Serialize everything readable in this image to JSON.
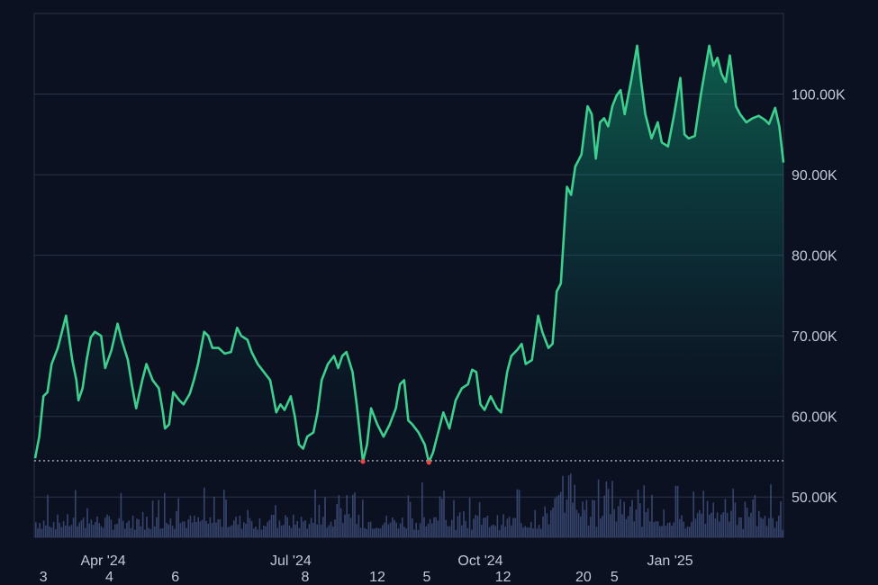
{
  "chart_data": {
    "type": "area",
    "title": "",
    "xlabel": "",
    "ylabel": "",
    "ylim": [
      45000,
      110000
    ],
    "y_ticks": [
      50000,
      60000,
      70000,
      80000,
      90000,
      100000
    ],
    "y_tick_labels": [
      "50.00K",
      "60.00K",
      "70.00K",
      "80.00K",
      "90.00K",
      "100.00K"
    ],
    "x_tick_labels": [
      {
        "date": "2024-04-01",
        "label": "Apr '24"
      },
      {
        "date": "2024-07-01",
        "label": "Jul '24"
      },
      {
        "date": "2024-10-01",
        "label": "Oct '24"
      },
      {
        "date": "2025-01-01",
        "label": "Jan '25"
      }
    ],
    "bottom_day_labels": [
      {
        "date": "2024-03-03",
        "label": "3"
      },
      {
        "date": "2024-04-04",
        "label": "4"
      },
      {
        "date": "2024-05-06",
        "label": "6"
      },
      {
        "date": "2024-07-08",
        "label": "8"
      },
      {
        "date": "2024-08-12",
        "label": "12"
      },
      {
        "date": "2024-09-05",
        "label": "5"
      },
      {
        "date": "2024-10-12",
        "label": "12"
      },
      {
        "date": "2024-11-20",
        "label": "20"
      },
      {
        "date": "2024-12-05",
        "label": "5"
      }
    ],
    "baseline": 54500,
    "low_markers": [
      {
        "date": "2024-08-05",
        "value": 54400
      },
      {
        "date": "2024-09-06",
        "value": 54300
      }
    ],
    "grid": true,
    "colors": {
      "line": "#3ecf8e",
      "area": "#10b981",
      "volume": "#3b4a75",
      "low_marker": "#ef4444",
      "grid": "#2a3447",
      "baseline": "#cbd5e1"
    },
    "series": [
      {
        "points": [
          [
            "2024-02-28",
            54800
          ],
          [
            "2024-03-01",
            57500
          ],
          [
            "2024-03-03",
            62500
          ],
          [
            "2024-03-05",
            63000
          ],
          [
            "2024-03-07",
            66500
          ],
          [
            "2024-03-10",
            68500
          ],
          [
            "2024-03-12",
            70500
          ],
          [
            "2024-03-14",
            72500
          ],
          [
            "2024-03-17",
            67000
          ],
          [
            "2024-03-19",
            64500
          ],
          [
            "2024-03-20",
            62000
          ],
          [
            "2024-03-22",
            63500
          ],
          [
            "2024-03-24",
            67000
          ],
          [
            "2024-03-26",
            69800
          ],
          [
            "2024-03-28",
            70500
          ],
          [
            "2024-03-31",
            70000
          ],
          [
            "2024-04-02",
            66000
          ],
          [
            "2024-04-05",
            68200
          ],
          [
            "2024-04-08",
            71500
          ],
          [
            "2024-04-10",
            69500
          ],
          [
            "2024-04-13",
            67000
          ],
          [
            "2024-04-15",
            63800
          ],
          [
            "2024-04-17",
            61000
          ],
          [
            "2024-04-20",
            64500
          ],
          [
            "2024-04-22",
            66500
          ],
          [
            "2024-04-25",
            64500
          ],
          [
            "2024-04-28",
            63500
          ],
          [
            "2024-04-30",
            60500
          ],
          [
            "2024-05-01",
            58500
          ],
          [
            "2024-05-03",
            59000
          ],
          [
            "2024-05-05",
            63000
          ],
          [
            "2024-05-08",
            62000
          ],
          [
            "2024-05-10",
            61500
          ],
          [
            "2024-05-13",
            62800
          ],
          [
            "2024-05-15",
            64500
          ],
          [
            "2024-05-17",
            66500
          ],
          [
            "2024-05-20",
            70500
          ],
          [
            "2024-05-22",
            70000
          ],
          [
            "2024-05-24",
            68500
          ],
          [
            "2024-05-27",
            68500
          ],
          [
            "2024-05-30",
            67800
          ],
          [
            "2024-06-02",
            68000
          ],
          [
            "2024-06-05",
            71000
          ],
          [
            "2024-06-07",
            70000
          ],
          [
            "2024-06-10",
            69500
          ],
          [
            "2024-06-12",
            68000
          ],
          [
            "2024-06-15",
            66500
          ],
          [
            "2024-06-18",
            65500
          ],
          [
            "2024-06-21",
            64500
          ],
          [
            "2024-06-24",
            60500
          ],
          [
            "2024-06-26",
            61500
          ],
          [
            "2024-06-28",
            60800
          ],
          [
            "2024-07-01",
            62500
          ],
          [
            "2024-07-03",
            60000
          ],
          [
            "2024-07-05",
            56500
          ],
          [
            "2024-07-07",
            56000
          ],
          [
            "2024-07-09",
            57500
          ],
          [
            "2024-07-12",
            58000
          ],
          [
            "2024-07-14",
            60500
          ],
          [
            "2024-07-16",
            64500
          ],
          [
            "2024-07-19",
            66500
          ],
          [
            "2024-07-22",
            67500
          ],
          [
            "2024-07-24",
            66000
          ],
          [
            "2024-07-26",
            67500
          ],
          [
            "2024-07-28",
            68000
          ],
          [
            "2024-07-31",
            65500
          ],
          [
            "2024-08-02",
            61500
          ],
          [
            "2024-08-05",
            54400
          ],
          [
            "2024-08-07",
            56500
          ],
          [
            "2024-08-09",
            61000
          ],
          [
            "2024-08-12",
            59000
          ],
          [
            "2024-08-15",
            57500
          ],
          [
            "2024-08-18",
            59000
          ],
          [
            "2024-08-21",
            61000
          ],
          [
            "2024-08-23",
            64000
          ],
          [
            "2024-08-25",
            64500
          ],
          [
            "2024-08-27",
            59500
          ],
          [
            "2024-08-29",
            59000
          ],
          [
            "2024-09-01",
            58000
          ],
          [
            "2024-09-04",
            56500
          ],
          [
            "2024-09-06",
            54300
          ],
          [
            "2024-09-08",
            55500
          ],
          [
            "2024-09-10",
            57500
          ],
          [
            "2024-09-13",
            60500
          ],
          [
            "2024-09-16",
            58500
          ],
          [
            "2024-09-19",
            62000
          ],
          [
            "2024-09-22",
            63500
          ],
          [
            "2024-09-25",
            64000
          ],
          [
            "2024-09-27",
            65800
          ],
          [
            "2024-09-29",
            65500
          ],
          [
            "2024-10-01",
            61500
          ],
          [
            "2024-10-03",
            60800
          ],
          [
            "2024-10-06",
            62500
          ],
          [
            "2024-10-09",
            61000
          ],
          [
            "2024-10-11",
            60500
          ],
          [
            "2024-10-14",
            65500
          ],
          [
            "2024-10-16",
            67500
          ],
          [
            "2024-10-19",
            68300
          ],
          [
            "2024-10-21",
            69000
          ],
          [
            "2024-10-23",
            66500
          ],
          [
            "2024-10-26",
            67000
          ],
          [
            "2024-10-29",
            72500
          ],
          [
            "2024-10-31",
            70500
          ],
          [
            "2024-11-03",
            68500
          ],
          [
            "2024-11-05",
            69000
          ],
          [
            "2024-11-07",
            75500
          ],
          [
            "2024-11-09",
            76500
          ],
          [
            "2024-11-11",
            84500
          ],
          [
            "2024-11-12",
            88500
          ],
          [
            "2024-11-14",
            87500
          ],
          [
            "2024-11-16",
            91000
          ],
          [
            "2024-11-19",
            92500
          ],
          [
            "2024-11-22",
            98500
          ],
          [
            "2024-11-24",
            97500
          ],
          [
            "2024-11-26",
            92000
          ],
          [
            "2024-11-28",
            96500
          ],
          [
            "2024-11-30",
            97000
          ],
          [
            "2024-12-02",
            96000
          ],
          [
            "2024-12-04",
            98500
          ],
          [
            "2024-12-06",
            99800
          ],
          [
            "2024-12-08",
            100500
          ],
          [
            "2024-12-10",
            97500
          ],
          [
            "2024-12-13",
            101500
          ],
          [
            "2024-12-16",
            106000
          ],
          [
            "2024-12-18",
            101500
          ],
          [
            "2024-12-20",
            97500
          ],
          [
            "2024-12-23",
            94500
          ],
          [
            "2024-12-26",
            96500
          ],
          [
            "2024-12-28",
            94000
          ],
          [
            "2024-12-31",
            93500
          ],
          [
            "2025-01-03",
            97500
          ],
          [
            "2025-01-06",
            102000
          ],
          [
            "2025-01-08",
            95000
          ],
          [
            "2025-01-10",
            94500
          ],
          [
            "2025-01-13",
            94800
          ],
          [
            "2025-01-16",
            100000
          ],
          [
            "2025-01-20",
            106000
          ],
          [
            "2025-01-22",
            103500
          ],
          [
            "2025-01-24",
            104500
          ],
          [
            "2025-01-26",
            102500
          ],
          [
            "2025-01-28",
            101500
          ],
          [
            "2025-01-30",
            104800
          ],
          [
            "2025-02-02",
            98500
          ],
          [
            "2025-02-04",
            97500
          ],
          [
            "2025-02-07",
            96500
          ],
          [
            "2025-02-10",
            97000
          ],
          [
            "2025-02-13",
            97300
          ],
          [
            "2025-02-16",
            96800
          ],
          [
            "2025-02-18",
            96300
          ],
          [
            "2025-02-21",
            98300
          ],
          [
            "2025-02-23",
            96000
          ],
          [
            "2025-02-25",
            91500
          ]
        ]
      }
    ]
  }
}
